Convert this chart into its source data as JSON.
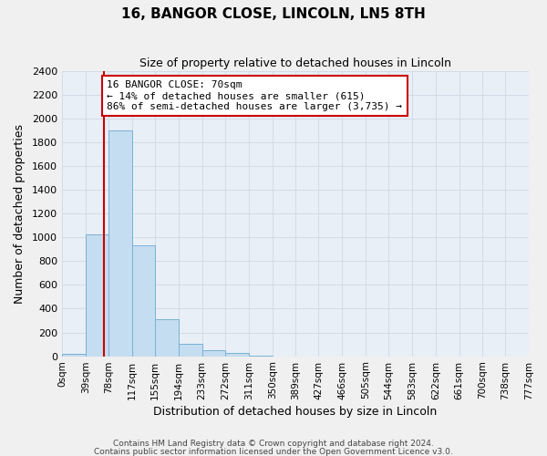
{
  "title": "16, BANGOR CLOSE, LINCOLN, LN5 8TH",
  "subtitle": "Size of property relative to detached houses in Lincoln",
  "xlabel": "Distribution of detached houses by size in Lincoln",
  "ylabel": "Number of detached properties",
  "bin_edges": [
    0,
    39,
    78,
    117,
    155,
    194,
    233,
    272,
    311,
    350,
    389,
    427,
    466,
    505,
    544,
    583,
    622,
    661,
    700,
    738,
    777
  ],
  "bar_heights": [
    20,
    1025,
    1900,
    930,
    315,
    105,
    50,
    25,
    5,
    0,
    0,
    0,
    0,
    0,
    0,
    0,
    0,
    0,
    0,
    0
  ],
  "bar_color": "#c5ddf0",
  "bar_edge_color": "#7ab0d4",
  "background_color": "#e8eff7",
  "grid_color": "#d0d8e4",
  "fig_bg_color": "#f0f0f0",
  "property_size": 70,
  "red_line_color": "#cc0000",
  "annotation_line1": "16 BANGOR CLOSE: 70sqm",
  "annotation_line2": "← 14% of detached houses are smaller (615)",
  "annotation_line3": "86% of semi-detached houses are larger (3,735) →",
  "annotation_box_color": "#ffffff",
  "annotation_box_edge": "#cc0000",
  "ylim": [
    0,
    2400
  ],
  "yticks": [
    0,
    200,
    400,
    600,
    800,
    1000,
    1200,
    1400,
    1600,
    1800,
    2000,
    2200,
    2400
  ],
  "xtick_labels": [
    "0sqm",
    "39sqm",
    "78sqm",
    "117sqm",
    "155sqm",
    "194sqm",
    "233sqm",
    "272sqm",
    "311sqm",
    "350sqm",
    "389sqm",
    "427sqm",
    "466sqm",
    "505sqm",
    "544sqm",
    "583sqm",
    "622sqm",
    "661sqm",
    "700sqm",
    "738sqm",
    "777sqm"
  ],
  "footer_line1": "Contains HM Land Registry data © Crown copyright and database right 2024.",
  "footer_line2": "Contains public sector information licensed under the Open Government Licence v3.0."
}
